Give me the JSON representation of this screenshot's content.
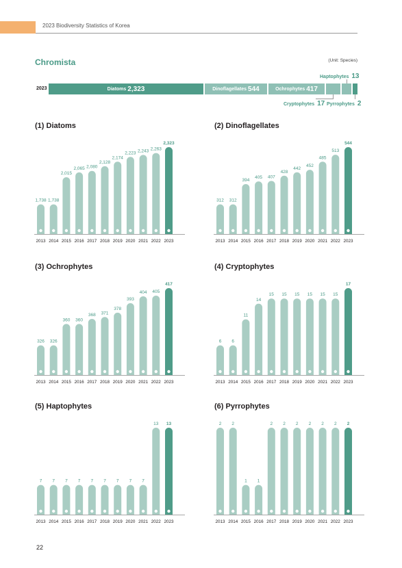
{
  "header": {
    "title": "2023 Biodiversity Statistics of Korea"
  },
  "section": {
    "title": "Chromista",
    "unit": "(Unit: Species)"
  },
  "summary": {
    "year": "2023",
    "segments": [
      {
        "label": "Diatoms",
        "value": "2,323",
        "color": "#4f9c89"
      },
      {
        "label": "Dinoflagellates",
        "value": "544",
        "color": "#8fc0b5"
      },
      {
        "label": "Ochrophytes",
        "value": "417",
        "color": "#8fc0b5"
      },
      {
        "label": "Cryptophytes",
        "value": "17",
        "color": "#8fc0b5"
      },
      {
        "label": "Haptophytes",
        "value": "13",
        "color": "#8fc0b5"
      },
      {
        "label": "Pyrrophytes",
        "value": "2",
        "color": "#4f9c89"
      }
    ]
  },
  "page_number": "22",
  "colors": {
    "bar": "#a9cdc3",
    "highlight": "#4f9c89",
    "label": "#4a9a87"
  },
  "chart_data": [
    {
      "type": "bar",
      "title": "(1) Diatoms",
      "categories": [
        "2013",
        "2014",
        "2015",
        "2016",
        "2017",
        "2018",
        "2019",
        "2020",
        "2021",
        "2022",
        "2023"
      ],
      "values": [
        1738,
        1738,
        2015,
        2065,
        2080,
        2128,
        2174,
        2223,
        2243,
        2263,
        2323
      ],
      "labels": [
        "1,738",
        "1,738",
        "2,015",
        "2,065",
        "2,080",
        "2,128",
        "2,174",
        "2,223",
        "2,243",
        "2,263",
        "2,323"
      ],
      "highlight": "2023"
    },
    {
      "type": "bar",
      "title": "(2) Dinoflagellates",
      "categories": [
        "2013",
        "2014",
        "2015",
        "2016",
        "2017",
        "2018",
        "2019",
        "2020",
        "2021",
        "2022",
        "2023"
      ],
      "values": [
        312,
        312,
        394,
        405,
        407,
        428,
        442,
        452,
        485,
        513,
        544
      ],
      "labels": [
        "312",
        "312",
        "394",
        "405",
        "407",
        "428",
        "442",
        "452",
        "485",
        "513",
        "544"
      ],
      "highlight": "2023"
    },
    {
      "type": "bar",
      "title": "(3) Ochrophytes",
      "categories": [
        "2013",
        "2014",
        "2015",
        "2016",
        "2017",
        "2018",
        "2019",
        "2020",
        "2021",
        "2022",
        "2023"
      ],
      "values": [
        326,
        326,
        360,
        360,
        368,
        371,
        378,
        393,
        404,
        405,
        417
      ],
      "labels": [
        "326",
        "326",
        "360",
        "360",
        "368",
        "371",
        "378",
        "393",
        "404",
        "405",
        "417"
      ],
      "highlight": "2023"
    },
    {
      "type": "bar",
      "title": "(4) Cryptophytes",
      "categories": [
        "2013",
        "2014",
        "2015",
        "2016",
        "2017",
        "2018",
        "2019",
        "2020",
        "2021",
        "2022",
        "2023"
      ],
      "values": [
        6,
        6,
        11,
        14,
        15,
        15,
        15,
        15,
        15,
        15,
        17
      ],
      "labels": [
        "6",
        "6",
        "11",
        "14",
        "15",
        "15",
        "15",
        "15",
        "15",
        "15",
        "17"
      ],
      "highlight": "2023"
    },
    {
      "type": "bar",
      "title": "(5) Haptophytes",
      "categories": [
        "2013",
        "2014",
        "2015",
        "2016",
        "2017",
        "2018",
        "2019",
        "2020",
        "2021",
        "2022",
        "2023"
      ],
      "values": [
        7,
        7,
        7,
        7,
        7,
        7,
        7,
        7,
        7,
        13,
        13
      ],
      "labels": [
        "7",
        "7",
        "7",
        "7",
        "7",
        "7",
        "7",
        "7",
        "7",
        "13",
        "13"
      ],
      "highlight": "2023"
    },
    {
      "type": "bar",
      "title": "(6) Pyrrophytes",
      "categories": [
        "2013",
        "2014",
        "2015",
        "2016",
        "2017",
        "2018",
        "2019",
        "2020",
        "2021",
        "2022",
        "2023"
      ],
      "values": [
        2,
        2,
        1,
        1,
        2,
        2,
        2,
        2,
        2,
        2,
        2
      ],
      "labels": [
        "2",
        "2",
        "1",
        "1",
        "2",
        "2",
        "2",
        "2",
        "2",
        "2",
        "2"
      ],
      "highlight": "2023"
    }
  ]
}
